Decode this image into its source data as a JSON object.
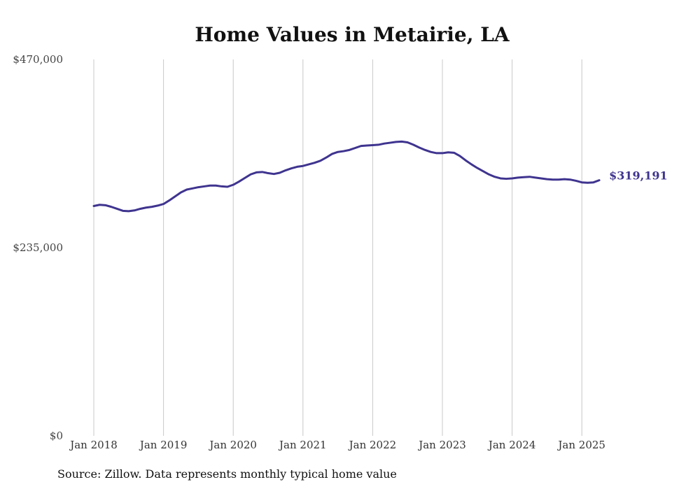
{
  "chart_data": {
    "type": "line",
    "title": "Home Values in Metairie, LA",
    "xlabel": "",
    "ylabel": "",
    "ylim": [
      0,
      470000
    ],
    "y_ticks": [
      {
        "value": 0,
        "label": "$0"
      },
      {
        "value": 235000,
        "label": "$235,000"
      },
      {
        "value": 470000,
        "label": "$470,000"
      }
    ],
    "x_ticks": [
      "Jan 2018",
      "Jan 2019",
      "Jan 2020",
      "Jan 2021",
      "Jan 2022",
      "Jan 2023",
      "Jan 2024",
      "Jan 2025"
    ],
    "grid": "vertical",
    "x_start": "2018-01",
    "series": [
      {
        "color": "#3f348f",
        "values": [
          287000,
          288500,
          288000,
          286000,
          283500,
          281000,
          280500,
          281500,
          283500,
          285000,
          286000,
          287500,
          289500,
          294000,
          299000,
          304000,
          307500,
          309000,
          310500,
          311500,
          312500,
          312500,
          311500,
          311000,
          313500,
          317500,
          322000,
          326500,
          329000,
          329500,
          328000,
          327000,
          328500,
          331500,
          334000,
          336000,
          337000,
          339000,
          341000,
          343500,
          347500,
          352000,
          354500,
          355500,
          357000,
          359500,
          362000,
          362500,
          363000,
          363500,
          365000,
          366000,
          367000,
          367500,
          366500,
          363500,
          360000,
          357000,
          354500,
          353000,
          353000,
          354000,
          353500,
          349500,
          344000,
          339000,
          334500,
          330500,
          326500,
          323500,
          321500,
          321000,
          321500,
          322500,
          323000,
          323500,
          322500,
          321500,
          320500,
          320000,
          320000,
          320500,
          320000,
          318500,
          316500,
          316000,
          316500,
          319191
        ]
      }
    ],
    "end_label": "$319,191",
    "source_note": "Source: Zillow. Data represents monthly typical home value"
  }
}
